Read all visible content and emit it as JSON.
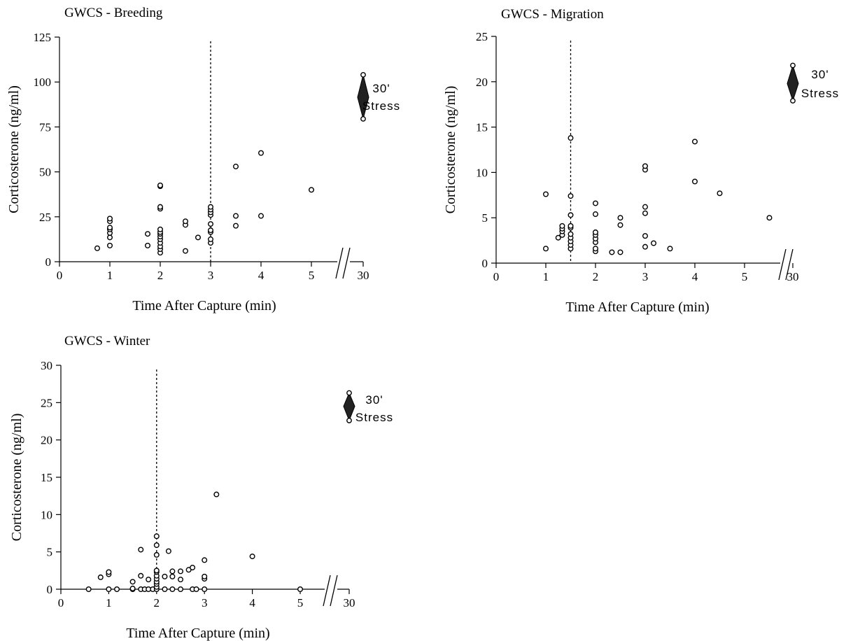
{
  "chart_data": [
    {
      "type": "scatter",
      "title": "GWCS - Breeding",
      "xlabel": "Time After Capture (min)",
      "ylabel": "Corticosterone (ng/ml)",
      "xlim": [
        0,
        5
      ],
      "ylim": [
        0,
        125
      ],
      "x_ticks": [
        "0",
        "1",
        "2",
        "3",
        "4",
        "5",
        "30"
      ],
      "y_ticks": [
        "0",
        "25",
        "50",
        "75",
        "100",
        "125"
      ],
      "x_axis_break": "between 5 and 30",
      "reference_line_x": 3,
      "stress": {
        "label_line1": "30'",
        "label_line2": "Stress",
        "x": 30,
        "y_top": 104,
        "y_bottom": 79.5,
        "y_mean": 91.5
      },
      "points": [
        [
          0.75,
          7.5
        ],
        [
          1,
          9
        ],
        [
          1,
          13.5
        ],
        [
          1,
          16
        ],
        [
          1,
          18
        ],
        [
          1,
          19
        ],
        [
          1,
          22.5
        ],
        [
          1,
          24
        ],
        [
          1.75,
          9
        ],
        [
          1.75,
          15.5
        ],
        [
          2,
          5
        ],
        [
          2,
          7
        ],
        [
          2,
          8.5
        ],
        [
          2,
          10.5
        ],
        [
          2,
          12.5
        ],
        [
          2,
          14
        ],
        [
          2,
          15.5
        ],
        [
          2,
          16.5
        ],
        [
          2,
          18
        ],
        [
          2,
          29.5
        ],
        [
          2,
          30.5
        ],
        [
          2,
          42
        ],
        [
          2,
          42.5
        ],
        [
          2.5,
          6
        ],
        [
          2.5,
          20.5
        ],
        [
          2.5,
          22.5
        ],
        [
          2.75,
          13.5
        ],
        [
          3,
          10.5
        ],
        [
          3,
          12.5
        ],
        [
          3,
          16.5
        ],
        [
          3,
          17.5
        ],
        [
          3,
          21
        ],
        [
          3,
          26
        ],
        [
          3,
          27.5
        ],
        [
          3,
          29
        ],
        [
          3,
          30.5
        ],
        [
          3.5,
          20
        ],
        [
          3.5,
          25.5
        ],
        [
          3.5,
          53
        ],
        [
          4,
          25.5
        ],
        [
          4,
          60.5
        ],
        [
          5,
          40
        ]
      ]
    },
    {
      "type": "scatter",
      "title": "GWCS - Migration",
      "xlabel": "Time After Capture (min)",
      "ylabel": "Corticosterone (ng/ml)",
      "xlim": [
        0,
        5.5
      ],
      "ylim": [
        0,
        25
      ],
      "x_ticks": [
        "0",
        "1",
        "2",
        "3",
        "4",
        "5",
        "30"
      ],
      "y_ticks": [
        "0",
        "5",
        "10",
        "15",
        "20",
        "25"
      ],
      "x_axis_break": "between 5.5 and 30",
      "reference_line_x": 1.5,
      "stress": {
        "label_line1": "30'",
        "label_line2": "Stress",
        "x": 30,
        "y_top": 21.8,
        "y_bottom": 17.9,
        "y_mean": 19.8
      },
      "points": [
        [
          1,
          1.6
        ],
        [
          1,
          7.6
        ],
        [
          1.25,
          2.8
        ],
        [
          1.33,
          3.1
        ],
        [
          1.33,
          3.5
        ],
        [
          1.33,
          3.8
        ],
        [
          1.33,
          4.1
        ],
        [
          1.5,
          1.6
        ],
        [
          1.5,
          2.0
        ],
        [
          1.5,
          2.4
        ],
        [
          1.5,
          2.8
        ],
        [
          1.5,
          3.2
        ],
        [
          1.5,
          3.9
        ],
        [
          1.5,
          4.1
        ],
        [
          1.5,
          5.3
        ],
        [
          1.5,
          7.4
        ],
        [
          1.5,
          13.8
        ],
        [
          2,
          1.3
        ],
        [
          2,
          1.6
        ],
        [
          2,
          2.3
        ],
        [
          2,
          2.7
        ],
        [
          2,
          3.1
        ],
        [
          2,
          3.4
        ],
        [
          2,
          5.4
        ],
        [
          2,
          6.6
        ],
        [
          2.33,
          1.2
        ],
        [
          2.5,
          1.2
        ],
        [
          2.5,
          4.2
        ],
        [
          2.5,
          5.0
        ],
        [
          3,
          1.8
        ],
        [
          3,
          3.0
        ],
        [
          3,
          5.5
        ],
        [
          3,
          6.2
        ],
        [
          3,
          10.3
        ],
        [
          3,
          10.7
        ],
        [
          3.17,
          2.2
        ],
        [
          3.5,
          1.6
        ],
        [
          4,
          9.0
        ],
        [
          4,
          13.4
        ],
        [
          4.5,
          7.7
        ],
        [
          5.5,
          5.0
        ]
      ]
    },
    {
      "type": "scatter",
      "title": "GWCS - Winter",
      "xlabel": "Time After Capture (min)",
      "ylabel": "Corticosterone (ng/ml)",
      "xlim": [
        0,
        5
      ],
      "ylim": [
        0,
        30
      ],
      "x_ticks": [
        "0",
        "1",
        "2",
        "3",
        "4",
        "5",
        "30"
      ],
      "y_ticks": [
        "0",
        "5",
        "10",
        "15",
        "20",
        "25",
        "30"
      ],
      "x_axis_break": "between 5 and 30",
      "reference_line_x": 2,
      "stress": {
        "label_line1": "30'",
        "label_line2": "Stress",
        "x": 30,
        "y_top": 26.3,
        "y_bottom": 22.6,
        "y_mean": 24.5
      },
      "points": [
        [
          0.58,
          0
        ],
        [
          0.83,
          1.6
        ],
        [
          1,
          0
        ],
        [
          1,
          2
        ],
        [
          1,
          2.3
        ],
        [
          1.17,
          0
        ],
        [
          1.5,
          0
        ],
        [
          1.5,
          0.1
        ],
        [
          1.5,
          1
        ],
        [
          1.67,
          0
        ],
        [
          1.67,
          1.8
        ],
        [
          1.67,
          5.3
        ],
        [
          1.75,
          0
        ],
        [
          1.83,
          0
        ],
        [
          1.83,
          1.3
        ],
        [
          1.92,
          0
        ],
        [
          2,
          0
        ],
        [
          2,
          0.3
        ],
        [
          2,
          0.7
        ],
        [
          2,
          1
        ],
        [
          2,
          1.4
        ],
        [
          2,
          1.8
        ],
        [
          2,
          2.3
        ],
        [
          2,
          2.5
        ],
        [
          2,
          4.6
        ],
        [
          2,
          5.9
        ],
        [
          2,
          7.1
        ],
        [
          2.17,
          0
        ],
        [
          2.17,
          1.7
        ],
        [
          2.25,
          5.1
        ],
        [
          2.33,
          0
        ],
        [
          2.33,
          1.7
        ],
        [
          2.33,
          2.4
        ],
        [
          2.5,
          0
        ],
        [
          2.5,
          1.3
        ],
        [
          2.5,
          2.4
        ],
        [
          2.67,
          2.6
        ],
        [
          2.75,
          0
        ],
        [
          2.75,
          2.9
        ],
        [
          2.83,
          0
        ],
        [
          3,
          0
        ],
        [
          3,
          1.4
        ],
        [
          3,
          1.7
        ],
        [
          3,
          3.9
        ],
        [
          3.25,
          12.7
        ],
        [
          4,
          4.4
        ],
        [
          5,
          0
        ]
      ]
    }
  ]
}
